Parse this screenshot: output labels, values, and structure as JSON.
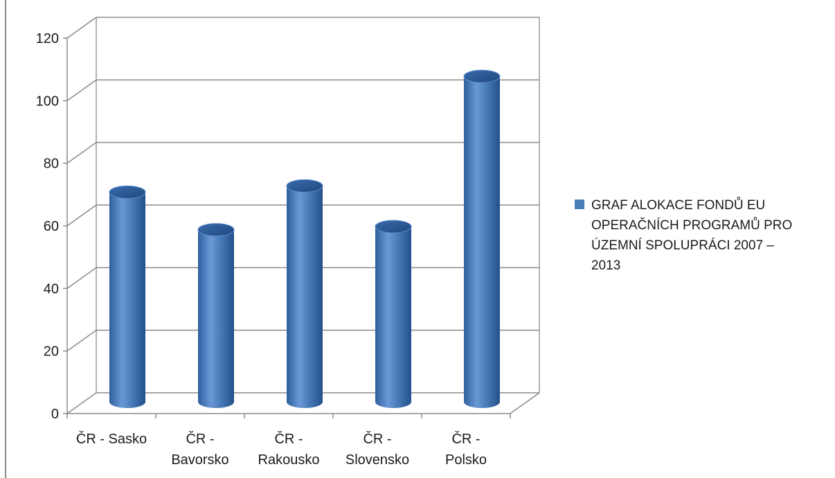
{
  "chart_data": {
    "type": "bar",
    "categories": [
      [
        "ČR - Sasko"
      ],
      [
        "ČR -",
        "Bavorsko"
      ],
      [
        "ČR -",
        "Rakousko"
      ],
      [
        "ČR -",
        "Slovensko"
      ],
      [
        "ČR -",
        "Polsko"
      ]
    ],
    "series": [
      {
        "name": "GRAF ALOKACE FONDŮ EU OPERAČNÍCH PROGRAMŮ PRO ÚZEMNÍ SPOLUPRÁCI 2007 – 2013",
        "values": [
          67,
          55,
          69,
          56,
          104
        ]
      }
    ],
    "yticks": [
      0,
      20,
      40,
      60,
      80,
      100,
      120
    ],
    "ylim": [
      0,
      120
    ],
    "grid": true,
    "legend_position": "right",
    "bar_color": "#4a7ebb",
    "bar_dark": "#2b5590",
    "bar_light": "#7ea6db"
  }
}
